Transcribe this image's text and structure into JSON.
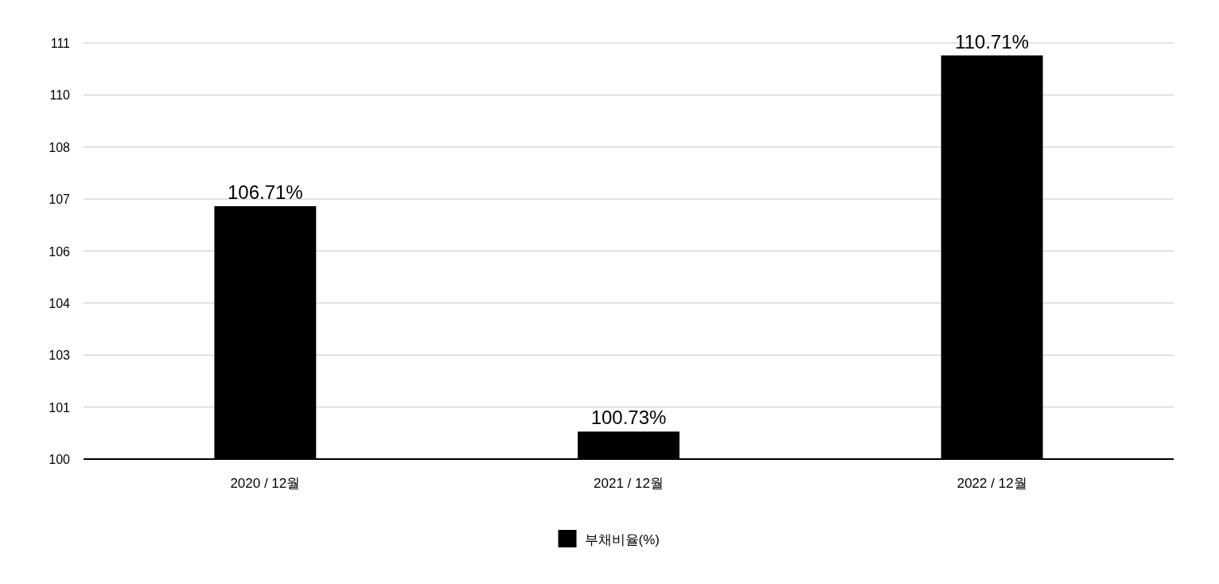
{
  "chart_data": {
    "type": "bar",
    "categories": [
      "2020 / 12월",
      "2021 / 12월",
      "2022 / 12월"
    ],
    "series": [
      {
        "name": "부채비율(%)",
        "color": "#000000",
        "values": [
          106.71,
          100.73,
          110.71
        ],
        "value_labels": [
          "106.71%",
          "100.73%",
          "110.71%"
        ]
      }
    ],
    "ylim": [
      100,
      111.04
    ],
    "yticks": [
      100,
      {
        "value": 101.38,
        "label": "101"
      },
      {
        "value": 102.76,
        "label": "103"
      },
      {
        "value": 104.14,
        "label": "104"
      },
      {
        "value": 105.52,
        "label": "106"
      },
      {
        "value": 106.9,
        "label": "107"
      },
      {
        "value": 108.28,
        "label": "108"
      },
      {
        "value": 109.66,
        "label": "110"
      },
      {
        "value": 111.04,
        "label": "111"
      }
    ],
    "grid": "y",
    "legend": "bottom"
  }
}
